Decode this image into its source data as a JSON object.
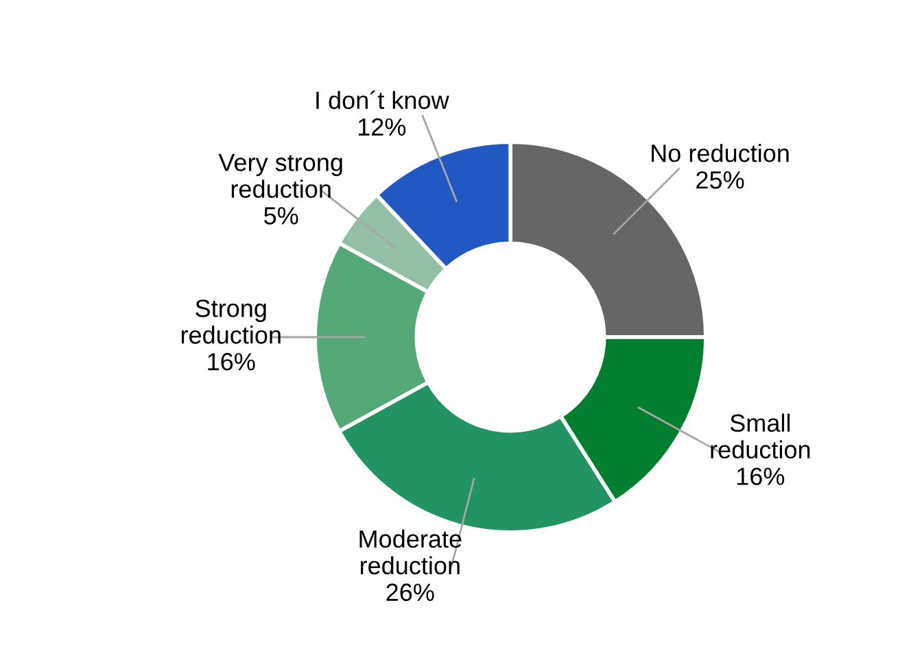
{
  "chart_data": {
    "type": "donut",
    "categories": [
      "No reduction",
      "Small\nreduction",
      "Moderate\nreduction",
      "Strong\nreduction",
      "Very strong\nreduction",
      "I don´t know"
    ],
    "values": [
      25,
      16,
      26,
      16,
      5,
      12
    ],
    "value_labels": [
      "25%",
      "16%",
      "26%",
      "16%",
      "5%",
      "12%"
    ],
    "colors": [
      "#666666",
      "#007f2f",
      "#229464",
      "#55a878",
      "#92c0a6",
      "#2158c4"
    ],
    "legend": false
  }
}
